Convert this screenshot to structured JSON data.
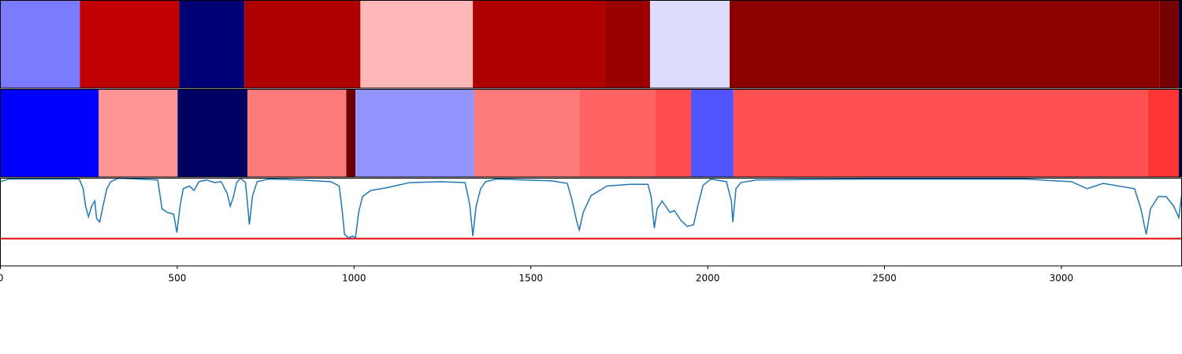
{
  "chart_data": [
    {
      "type": "segments",
      "bins": [
        0,
        225,
        506,
        690,
        1018,
        1336,
        1708,
        1837,
        2062,
        3278,
        3332,
        3340
      ],
      "colors": [
        "#7b7bff",
        "#c00000",
        "#000075",
        "#ae0000",
        "#ffb8b8",
        "#ae0000",
        "#9b0000",
        "#dcdcff",
        "#8d0000",
        "#750000",
        "#000040"
      ],
      "xlim": [
        0,
        3340
      ]
    },
    {
      "type": "segments",
      "bins": [
        0,
        278,
        501,
        699,
        978,
        1004,
        1339,
        1637,
        1851,
        1953,
        2073,
        3245,
        3332,
        3340
      ],
      "colors": [
        "#0000ff",
        "#ff9494",
        "#000060",
        "#ff7b7b",
        "#6a0000",
        "#9494ff",
        "#ff7b7b",
        "#ff6262",
        "#ff4b4b",
        "#5252ff",
        "#ff5050",
        "#ff3434",
        "#000040"
      ],
      "xlim": [
        0,
        3340
      ]
    },
    {
      "type": "line",
      "x": [
        0,
        22,
        223,
        234,
        241,
        249,
        258,
        267,
        272,
        281,
        290,
        301,
        312,
        334,
        445,
        457,
        472,
        490,
        499,
        508,
        517,
        534,
        548,
        561,
        583,
        606,
        624,
        641,
        650,
        659,
        668,
        679,
        693,
        699,
        704,
        713,
        726,
        757,
        846,
        935,
        958,
        967,
        973,
        984,
        996,
        1004,
        1013,
        1024,
        1047,
        1091,
        1158,
        1247,
        1314,
        1327,
        1336,
        1345,
        1358,
        1372,
        1403,
        1559,
        1603,
        1617,
        1630,
        1637,
        1648,
        1670,
        1715,
        1781,
        1831,
        1840,
        1849,
        1857,
        1871,
        1893,
        1906,
        1924,
        1942,
        1960,
        1973,
        1987,
        2009,
        2053,
        2067,
        2071,
        2080,
        2094,
        2138,
        2450,
        2673,
        2895,
        3029,
        3073,
        3118,
        3207,
        3225,
        3240,
        3252,
        3274,
        3296,
        3318,
        3332,
        3340
      ],
      "values": [
        0.96,
        0.99,
        0.99,
        0.88,
        0.68,
        0.56,
        0.68,
        0.74,
        0.54,
        0.5,
        0.68,
        0.88,
        0.96,
        1.0,
        0.98,
        0.65,
        0.61,
        0.59,
        0.38,
        0.68,
        0.88,
        0.91,
        0.86,
        0.96,
        0.98,
        0.95,
        0.96,
        0.83,
        0.68,
        0.79,
        0.95,
        1.0,
        0.95,
        0.7,
        0.47,
        0.8,
        0.96,
        0.99,
        0.98,
        0.96,
        0.91,
        0.61,
        0.36,
        0.32,
        0.34,
        0.32,
        0.61,
        0.79,
        0.86,
        0.89,
        0.95,
        0.96,
        0.95,
        0.7,
        0.34,
        0.68,
        0.88,
        0.96,
        0.99,
        0.97,
        0.94,
        0.74,
        0.5,
        0.41,
        0.61,
        0.8,
        0.91,
        0.93,
        0.93,
        0.79,
        0.43,
        0.65,
        0.74,
        0.61,
        0.63,
        0.52,
        0.45,
        0.47,
        0.7,
        0.92,
        0.99,
        0.96,
        0.74,
        0.5,
        0.88,
        0.95,
        0.98,
        0.99,
        0.99,
        0.99,
        0.96,
        0.88,
        0.94,
        0.88,
        0.65,
        0.36,
        0.65,
        0.79,
        0.79,
        0.68,
        0.55,
        0.8
      ],
      "color": "#1f77b4",
      "threshold": 0.31,
      "threshold_color": "#e00000",
      "ylim": [
        0,
        1
      ],
      "xlim": [
        0,
        3340
      ],
      "xticks": [
        0,
        500,
        1000,
        1500,
        2000,
        2500,
        3000
      ]
    }
  ]
}
